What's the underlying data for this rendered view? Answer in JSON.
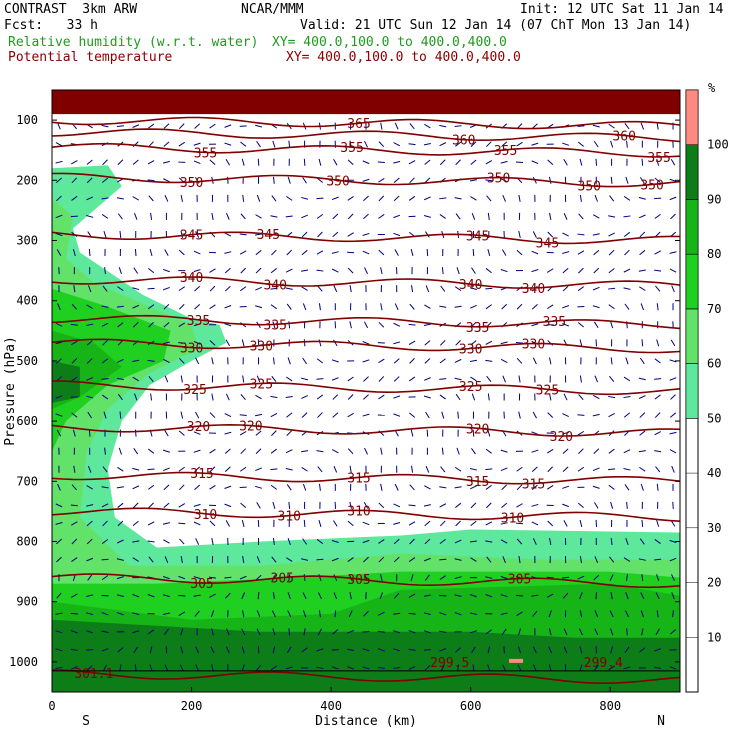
{
  "header": {
    "line1_left": "CONTRAST  3km ARW",
    "line1_center": "NCAR/MMM",
    "line1_right": "Init: 12 UTC Sat 11 Jan 14",
    "line2_left": "Fcst:   33 h",
    "line2_right": "Valid: 21 UTC Sun 12 Jan 14 (07 ChT Mon 13 Jan 14)",
    "rh_label": "Relative humidity (w.r.t. water)",
    "rh_xy": "XY= 400.0,100.0 to 400.0,400.0",
    "theta_label": "Potential temperature",
    "theta_xy": "XY= 400.0,100.0 to 400.0,400.0"
  },
  "colors": {
    "rh_50": "#5de89c",
    "rh_60": "#63e26a",
    "rh_70": "#20d020",
    "rh_80": "#17b417",
    "rh_90": "#0d7d18",
    "rh_100": "#ff8a80",
    "theta": "#800000",
    "wind": "#000080"
  },
  "chart_data": {
    "type": "cross-section",
    "xlabel": "Distance (km)",
    "ylabel": "Pressure (hPa)",
    "xlim": [
      0,
      900
    ],
    "ylim_hpa": [
      1050,
      50
    ],
    "x_ticks": [
      "0",
      "200",
      "400",
      "600",
      "800"
    ],
    "y_ticks": [
      "100",
      "200",
      "300",
      "400",
      "500",
      "600",
      "700",
      "800",
      "900",
      "1000"
    ],
    "x_end_left": "S",
    "x_end_right": "N",
    "colorbar": {
      "unit": "%",
      "ticks": [
        "10",
        "20",
        "30",
        "40",
        "50",
        "60",
        "70",
        "80",
        "90",
        "100"
      ],
      "levels": [
        50,
        60,
        70,
        80,
        90,
        100
      ]
    },
    "theta_contours": [
      {
        "value": 300,
        "p": 1020,
        "labels": [
          {
            "x": 60,
            "text": "301.1"
          }
        ]
      },
      {
        "value": 305,
        "p": 860,
        "labels": [
          {
            "x": 215,
            "text": "305"
          },
          {
            "x": 330,
            "text": "305"
          },
          {
            "x": 440,
            "text": "305"
          },
          {
            "x": 670,
            "text": "305"
          }
        ]
      },
      {
        "value": 310,
        "p": 750,
        "labels": [
          {
            "x": 220,
            "text": "310"
          },
          {
            "x": 340,
            "text": "310"
          },
          {
            "x": 440,
            "text": "310"
          },
          {
            "x": 660,
            "text": "310"
          }
        ]
      },
      {
        "value": 315,
        "p": 690,
        "labels": [
          {
            "x": 215,
            "text": "315"
          },
          {
            "x": 440,
            "text": "315"
          },
          {
            "x": 610,
            "text": "315"
          },
          {
            "x": 690,
            "text": "315"
          }
        ]
      },
      {
        "value": 320,
        "p": 610,
        "labels": [
          {
            "x": 210,
            "text": "320"
          },
          {
            "x": 285,
            "text": "320"
          },
          {
            "x": 610,
            "text": "320"
          },
          {
            "x": 730,
            "text": "320"
          }
        ]
      },
      {
        "value": 325,
        "p": 540,
        "labels": [
          {
            "x": 205,
            "text": "325"
          },
          {
            "x": 300,
            "text": "325"
          },
          {
            "x": 600,
            "text": "325"
          },
          {
            "x": 710,
            "text": "325"
          }
        ]
      },
      {
        "value": 330,
        "p": 470,
        "labels": [
          {
            "x": 200,
            "text": "330"
          },
          {
            "x": 300,
            "text": "330"
          },
          {
            "x": 600,
            "text": "330"
          },
          {
            "x": 690,
            "text": "330"
          }
        ]
      },
      {
        "value": 335,
        "p": 430,
        "labels": [
          {
            "x": 210,
            "text": "335"
          },
          {
            "x": 320,
            "text": "335"
          },
          {
            "x": 610,
            "text": "335"
          },
          {
            "x": 720,
            "text": "335"
          }
        ]
      },
      {
        "value": 340,
        "p": 365,
        "labels": [
          {
            "x": 200,
            "text": "340"
          },
          {
            "x": 320,
            "text": "340"
          },
          {
            "x": 600,
            "text": "340"
          },
          {
            "x": 690,
            "text": "340"
          }
        ]
      },
      {
        "value": 345,
        "p": 290,
        "labels": [
          {
            "x": 200,
            "text": "345"
          },
          {
            "x": 310,
            "text": "345"
          },
          {
            "x": 610,
            "text": "345"
          },
          {
            "x": 710,
            "text": "345"
          }
        ]
      },
      {
        "value": 350,
        "p": 195,
        "labels": [
          {
            "x": 200,
            "text": "350"
          },
          {
            "x": 410,
            "text": "350"
          },
          {
            "x": 640,
            "text": "350"
          },
          {
            "x": 770,
            "text": "350"
          },
          {
            "x": 860,
            "text": "350"
          }
        ]
      },
      {
        "value": 355,
        "p": 145,
        "labels": [
          {
            "x": 220,
            "text": "355"
          },
          {
            "x": 430,
            "text": "355"
          },
          {
            "x": 650,
            "text": "355"
          },
          {
            "x": 870,
            "text": "355"
          }
        ]
      },
      {
        "value": 360,
        "p": 120,
        "labels": [
          {
            "x": 590,
            "text": "360"
          },
          {
            "x": 820,
            "text": "360"
          }
        ]
      },
      {
        "value": 365,
        "p": 100,
        "labels": [
          {
            "x": 440,
            "text": "365"
          }
        ]
      }
    ],
    "surface_labels": [
      {
        "x": 570,
        "p": 1000,
        "text": "299.5"
      },
      {
        "x": 790,
        "p": 1000,
        "text": "299.4"
      }
    ],
    "rh_regions": [
      {
        "level": 50,
        "poly": [
          [
            0,
            1050
          ],
          [
            0,
            180
          ],
          [
            80,
            175
          ],
          [
            100,
            210
          ],
          [
            60,
            250
          ],
          [
            30,
            280
          ],
          [
            40,
            320
          ],
          [
            130,
            390
          ],
          [
            200,
            430
          ],
          [
            240,
            440
          ],
          [
            250,
            470
          ],
          [
            200,
            500
          ],
          [
            140,
            540
          ],
          [
            100,
            600
          ],
          [
            80,
            680
          ],
          [
            90,
            760
          ],
          [
            150,
            810
          ],
          [
            300,
            800
          ],
          [
            500,
            790
          ],
          [
            600,
            780
          ],
          [
            900,
            785
          ],
          [
            900,
            1050
          ]
        ]
      },
      {
        "level": 60,
        "poly": [
          [
            0,
            1050
          ],
          [
            0,
            230
          ],
          [
            30,
            260
          ],
          [
            20,
            330
          ],
          [
            60,
            370
          ],
          [
            140,
            410
          ],
          [
            200,
            440
          ],
          [
            210,
            480
          ],
          [
            140,
            520
          ],
          [
            80,
            580
          ],
          [
            50,
            650
          ],
          [
            40,
            760
          ],
          [
            110,
            840
          ],
          [
            300,
            840
          ],
          [
            500,
            820
          ],
          [
            700,
            830
          ],
          [
            900,
            830
          ],
          [
            900,
            1050
          ]
        ]
      },
      {
        "level": 70,
        "poly": [
          [
            0,
            1050
          ],
          [
            0,
            380
          ],
          [
            80,
            410
          ],
          [
            170,
            450
          ],
          [
            160,
            500
          ],
          [
            80,
            540
          ],
          [
            20,
            600
          ],
          [
            0,
            650
          ],
          [
            0,
            870
          ],
          [
            150,
            870
          ],
          [
            350,
            860
          ],
          [
            500,
            850
          ],
          [
            800,
            850
          ],
          [
            900,
            860
          ],
          [
            900,
            1050
          ]
        ]
      },
      {
        "level": 80,
        "poly": [
          [
            0,
            1050
          ],
          [
            0,
            450
          ],
          [
            60,
            470
          ],
          [
            100,
            510
          ],
          [
            40,
            560
          ],
          [
            0,
            580
          ],
          [
            0,
            900
          ],
          [
            200,
            930
          ],
          [
            400,
            920
          ],
          [
            500,
            880
          ],
          [
            800,
            870
          ],
          [
            900,
            890
          ],
          [
            900,
            1050
          ]
        ]
      },
      {
        "level": 90,
        "poly": [
          [
            0,
            1050
          ],
          [
            0,
            930
          ],
          [
            150,
            940
          ],
          [
            300,
            950
          ],
          [
            450,
            950
          ],
          [
            600,
            950
          ],
          [
            750,
            960
          ],
          [
            900,
            960
          ],
          [
            900,
            1050
          ]
        ]
      },
      {
        "level": 90,
        "poly": [
          [
            0,
            500
          ],
          [
            40,
            510
          ],
          [
            40,
            560
          ],
          [
            0,
            570
          ]
        ]
      },
      {
        "level": 100,
        "poly": [
          [
            0,
            50
          ],
          [
            900,
            50
          ],
          [
            900,
            90
          ],
          [
            0,
            90
          ]
        ]
      }
    ]
  }
}
